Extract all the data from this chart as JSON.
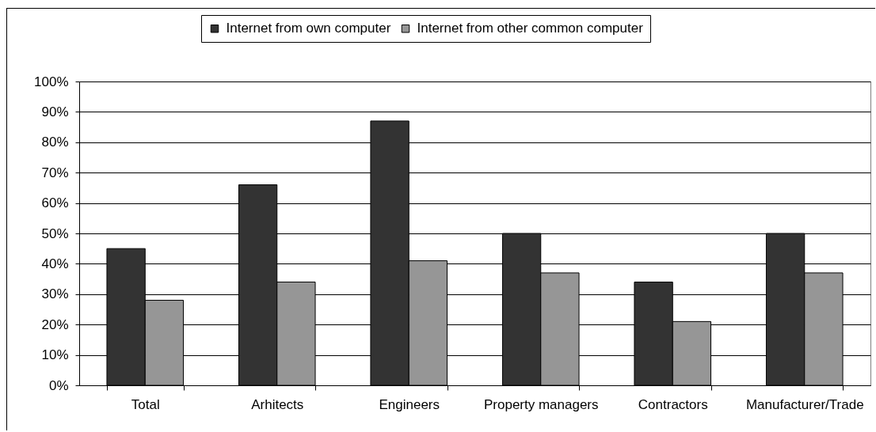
{
  "chart_data": {
    "type": "bar",
    "categories": [
      "Total",
      "Arhitects",
      "Engineers",
      "Property managers",
      "Contractors",
      "Manufacturer/Trade"
    ],
    "series": [
      {
        "name": "Internet from own computer",
        "color": "#333333",
        "values": [
          45,
          66,
          87,
          50,
          34,
          50
        ]
      },
      {
        "name": "Internet from other common computer",
        "color": "#969696",
        "values": [
          28,
          34,
          41,
          37,
          21,
          37
        ]
      }
    ],
    "ylim": [
      0,
      100
    ],
    "yticks": [
      {
        "value": 0,
        "label": "0%"
      },
      {
        "value": 10,
        "label": "10%"
      },
      {
        "value": 20,
        "label": "20%"
      },
      {
        "value": 30,
        "label": "30%"
      },
      {
        "value": 40,
        "label": "40%"
      },
      {
        "value": 50,
        "label": "50%"
      },
      {
        "value": 60,
        "label": "60%"
      },
      {
        "value": 70,
        "label": "70%"
      },
      {
        "value": 80,
        "label": "80%"
      },
      {
        "value": 90,
        "label": "90%"
      },
      {
        "value": 100,
        "label": "100%"
      }
    ],
    "grid": "y",
    "legend": "top"
  }
}
